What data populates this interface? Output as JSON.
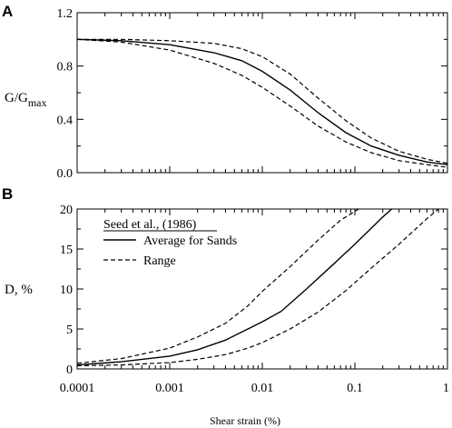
{
  "chart_data": [
    {
      "panel": "A",
      "type": "line",
      "xscale": "log",
      "xlim": [
        0.0001,
        1
      ],
      "ylim": [
        0,
        1.2
      ],
      "x_ticks": [
        "0.0001",
        "0.001",
        "0.01",
        "0.1",
        "1"
      ],
      "y_ticks": [
        "0.0",
        "0.4",
        "0.8",
        "1.2"
      ],
      "ylabel": "G/G",
      "ylabel_sub": "max",
      "series": [
        {
          "style": "solid",
          "x": [
            0.0001,
            0.0003,
            0.001,
            0.003,
            0.006,
            0.01,
            0.02,
            0.04,
            0.08,
            0.15,
            0.3,
            0.6,
            1
          ],
          "y": [
            1.0,
            0.99,
            0.96,
            0.9,
            0.84,
            0.76,
            0.62,
            0.45,
            0.3,
            0.2,
            0.13,
            0.08,
            0.06
          ]
        },
        {
          "style": "dashed",
          "x": [
            0.0001,
            0.0003,
            0.001,
            0.003,
            0.006,
            0.01,
            0.02,
            0.04,
            0.08,
            0.15,
            0.3,
            0.6,
            1
          ],
          "y": [
            1.0,
            1.0,
            0.99,
            0.97,
            0.93,
            0.87,
            0.74,
            0.56,
            0.39,
            0.26,
            0.16,
            0.1,
            0.07
          ]
        },
        {
          "style": "dashed",
          "x": [
            0.0001,
            0.0003,
            0.001,
            0.003,
            0.006,
            0.01,
            0.02,
            0.04,
            0.08,
            0.15,
            0.3,
            0.6,
            1
          ],
          "y": [
            1.0,
            0.98,
            0.92,
            0.82,
            0.73,
            0.64,
            0.5,
            0.35,
            0.23,
            0.15,
            0.09,
            0.06,
            0.04
          ]
        }
      ]
    },
    {
      "panel": "B",
      "type": "line",
      "xscale": "log",
      "xlim": [
        0.0001,
        1
      ],
      "ylim": [
        0,
        20
      ],
      "x_ticks": [
        "0.0001",
        "0.001",
        "0.01",
        "0.1",
        "1"
      ],
      "y_ticks": [
        "0",
        "5",
        "10",
        "15",
        "20"
      ],
      "ylabel": "D, %",
      "xlabel": "Shear strain (%)",
      "legend": {
        "title": "Seed et al., (1986)",
        "entries": [
          {
            "label": "Average for Sands",
            "style": "solid"
          },
          {
            "label": "Range",
            "style": "dashed"
          }
        ]
      },
      "series": [
        {
          "style": "solid",
          "x": [
            0.0001,
            0.0003,
            0.001,
            0.002,
            0.004,
            0.007,
            0.01,
            0.016,
            0.03,
            0.06,
            0.1,
            0.2,
            0.25
          ],
          "y": [
            0.5,
            0.9,
            1.6,
            2.4,
            3.6,
            5.0,
            5.9,
            7.2,
            10.0,
            13.2,
            15.6,
            19.0,
            20.0
          ]
        },
        {
          "style": "dashed",
          "x": [
            0.0001,
            0.0003,
            0.001,
            0.002,
            0.004,
            0.007,
            0.01,
            0.02,
            0.04,
            0.07,
            0.11
          ],
          "y": [
            0.7,
            1.3,
            2.6,
            4.0,
            5.7,
            7.9,
            9.7,
            12.8,
            16.1,
            18.6,
            20.0
          ]
        },
        {
          "style": "dashed",
          "x": [
            0.0001,
            0.0003,
            0.001,
            0.002,
            0.004,
            0.007,
            0.01,
            0.02,
            0.04,
            0.08,
            0.15,
            0.3,
            0.6,
            0.8
          ],
          "y": [
            0.4,
            0.5,
            0.8,
            1.2,
            1.8,
            2.6,
            3.3,
            5.0,
            7.1,
            9.8,
            12.6,
            15.6,
            18.8,
            20.0
          ]
        }
      ]
    }
  ]
}
